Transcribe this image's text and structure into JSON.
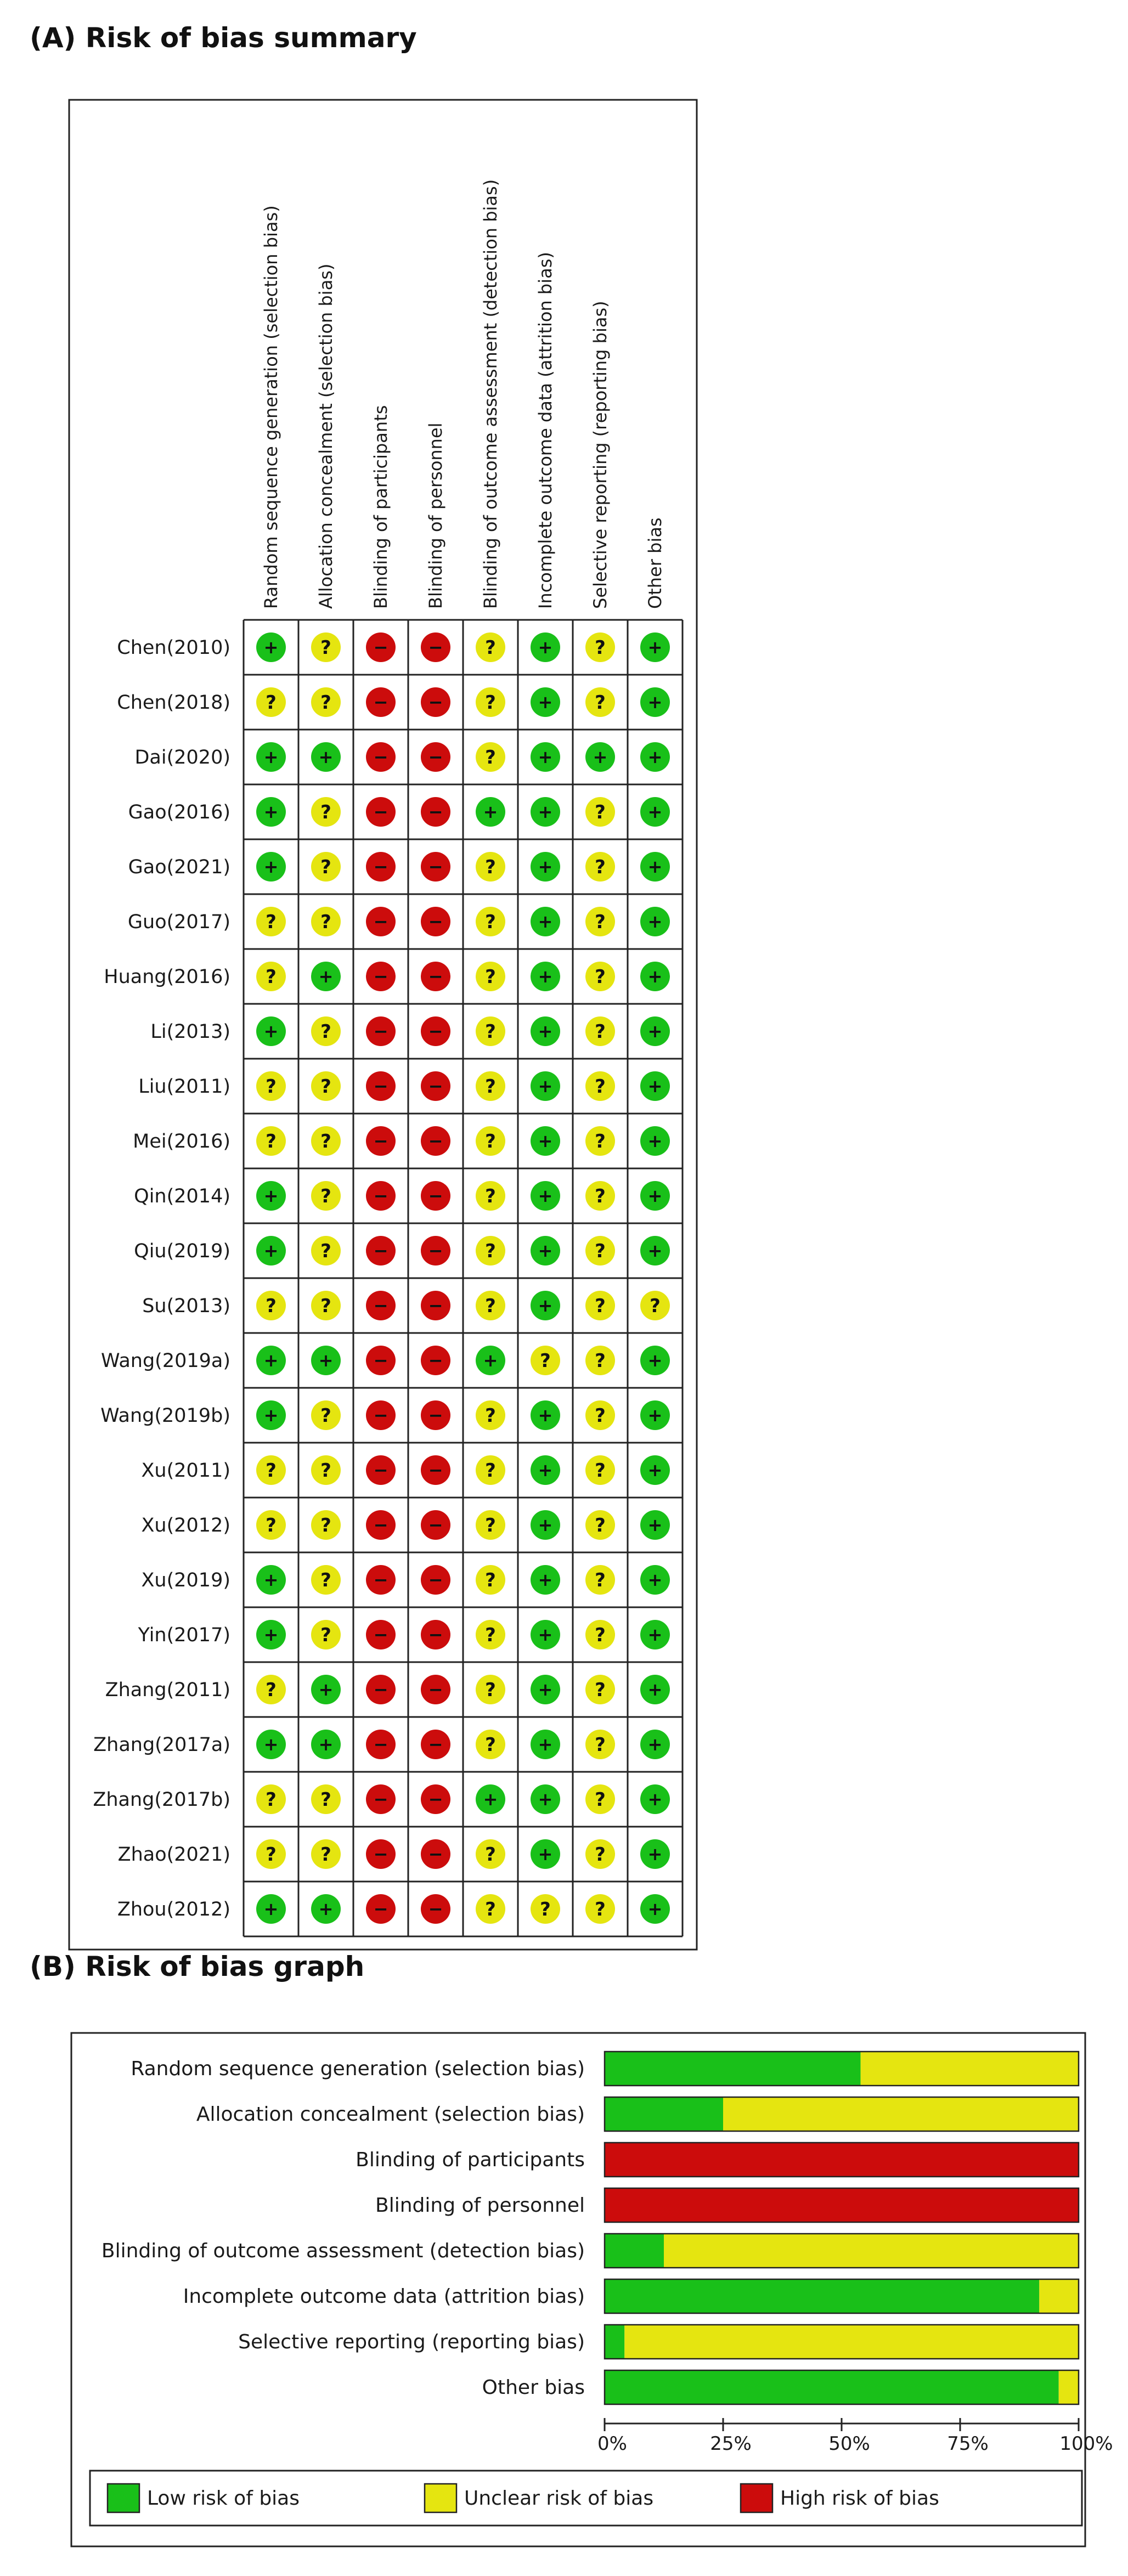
{
  "panel_a": {
    "title": "(A) Risk of bias summary"
  },
  "panel_b": {
    "title": "(B) Risk of bias graph"
  },
  "chart_data": [
    {
      "type": "table",
      "title": "(A) Risk of bias summary",
      "columns": [
        "Random sequence generation (selection bias)",
        "Allocation concealment (selection bias)",
        "Blinding of participants",
        "Blinding of personnel",
        "Blinding of outcome assessment (detection bias)",
        "Incomplete outcome data (attrition bias)",
        "Selective reporting (reporting bias)",
        "Other bias"
      ],
      "rows": [
        {
          "study": "Chen(2010)",
          "ratings": [
            "+",
            "?",
            "-",
            "-",
            "?",
            "+",
            "?",
            "+"
          ]
        },
        {
          "study": "Chen(2018)",
          "ratings": [
            "?",
            "?",
            "-",
            "-",
            "?",
            "+",
            "?",
            "+"
          ]
        },
        {
          "study": "Dai(2020)",
          "ratings": [
            "+",
            "+",
            "-",
            "-",
            "?",
            "+",
            "+",
            "+"
          ]
        },
        {
          "study": "Gao(2016)",
          "ratings": [
            "+",
            "?",
            "-",
            "-",
            "+",
            "+",
            "?",
            "+"
          ]
        },
        {
          "study": "Gao(2021)",
          "ratings": [
            "+",
            "?",
            "-",
            "-",
            "?",
            "+",
            "?",
            "+"
          ]
        },
        {
          "study": "Guo(2017)",
          "ratings": [
            "?",
            "?",
            "-",
            "-",
            "?",
            "+",
            "?",
            "+"
          ]
        },
        {
          "study": "Huang(2016)",
          "ratings": [
            "?",
            "+",
            "-",
            "-",
            "?",
            "+",
            "?",
            "+"
          ]
        },
        {
          "study": "Li(2013)",
          "ratings": [
            "+",
            "?",
            "-",
            "-",
            "?",
            "+",
            "?",
            "+"
          ]
        },
        {
          "study": "Liu(2011)",
          "ratings": [
            "?",
            "?",
            "-",
            "-",
            "?",
            "+",
            "?",
            "+"
          ]
        },
        {
          "study": "Mei(2016)",
          "ratings": [
            "?",
            "?",
            "-",
            "-",
            "?",
            "+",
            "?",
            "+"
          ]
        },
        {
          "study": "Qin(2014)",
          "ratings": [
            "+",
            "?",
            "-",
            "-",
            "?",
            "+",
            "?",
            "+"
          ]
        },
        {
          "study": "Qiu(2019)",
          "ratings": [
            "+",
            "?",
            "-",
            "-",
            "?",
            "+",
            "?",
            "+"
          ]
        },
        {
          "study": "Su(2013)",
          "ratings": [
            "?",
            "?",
            "-",
            "-",
            "?",
            "+",
            "?",
            "?"
          ]
        },
        {
          "study": "Wang(2019a)",
          "ratings": [
            "+",
            "+",
            "-",
            "-",
            "+",
            "?",
            "?",
            "+"
          ]
        },
        {
          "study": "Wang(2019b)",
          "ratings": [
            "+",
            "?",
            "-",
            "-",
            "?",
            "+",
            "?",
            "+"
          ]
        },
        {
          "study": "Xu(2011)",
          "ratings": [
            "?",
            "?",
            "-",
            "-",
            "?",
            "+",
            "?",
            "+"
          ]
        },
        {
          "study": "Xu(2012)",
          "ratings": [
            "?",
            "?",
            "-",
            "-",
            "?",
            "+",
            "?",
            "+"
          ]
        },
        {
          "study": "Xu(2019)",
          "ratings": [
            "+",
            "?",
            "-",
            "-",
            "?",
            "+",
            "?",
            "+"
          ]
        },
        {
          "study": "Yin(2017)",
          "ratings": [
            "+",
            "?",
            "-",
            "-",
            "?",
            "+",
            "?",
            "+"
          ]
        },
        {
          "study": "Zhang(2011)",
          "ratings": [
            "?",
            "+",
            "-",
            "-",
            "?",
            "+",
            "?",
            "+"
          ]
        },
        {
          "study": "Zhang(2017a)",
          "ratings": [
            "+",
            "+",
            "-",
            "-",
            "?",
            "+",
            "?",
            "+"
          ]
        },
        {
          "study": "Zhang(2017b)",
          "ratings": [
            "?",
            "?",
            "-",
            "-",
            "+",
            "+",
            "?",
            "+"
          ]
        },
        {
          "study": "Zhao(2021)",
          "ratings": [
            "?",
            "?",
            "-",
            "-",
            "?",
            "+",
            "?",
            "+"
          ]
        },
        {
          "study": "Zhou(2012)",
          "ratings": [
            "+",
            "+",
            "-",
            "-",
            "?",
            "?",
            "?",
            "+"
          ]
        }
      ]
    },
    {
      "type": "bar",
      "stacked": true,
      "orientation": "horizontal",
      "title": "(B) Risk of bias graph",
      "categories": [
        "Random sequence generation (selection bias)",
        "Allocation concealment (selection bias)",
        "Blinding of participants",
        "Blinding of personnel",
        "Blinding of outcome assessment (detection bias)",
        "Incomplete outcome data (attrition bias)",
        "Selective reporting (reporting bias)",
        "Other bias"
      ],
      "series": [
        {
          "name": "Low risk of bias",
          "color": "#19c019",
          "values": [
            54,
            25,
            0,
            0,
            12.5,
            91.7,
            4.2,
            95.8
          ]
        },
        {
          "name": "Unclear risk of bias",
          "color": "#e5e510",
          "values": [
            46,
            75,
            0,
            0,
            87.5,
            8.3,
            95.8,
            4.2
          ]
        },
        {
          "name": "High risk of bias",
          "color": "#cc0c0c",
          "values": [
            0,
            0,
            100,
            100,
            0,
            0,
            0,
            0
          ]
        }
      ],
      "xticks": [
        "0%",
        "25%",
        "50%",
        "75%",
        "100%"
      ],
      "xlim": [
        0,
        100
      ],
      "legend": "bottom"
    }
  ],
  "colors": {
    "low": "#19c019",
    "unclear": "#e5e510",
    "high": "#cc0c0c"
  },
  "symbols": {
    "low": "+",
    "unclear": "?",
    "high": "−"
  }
}
